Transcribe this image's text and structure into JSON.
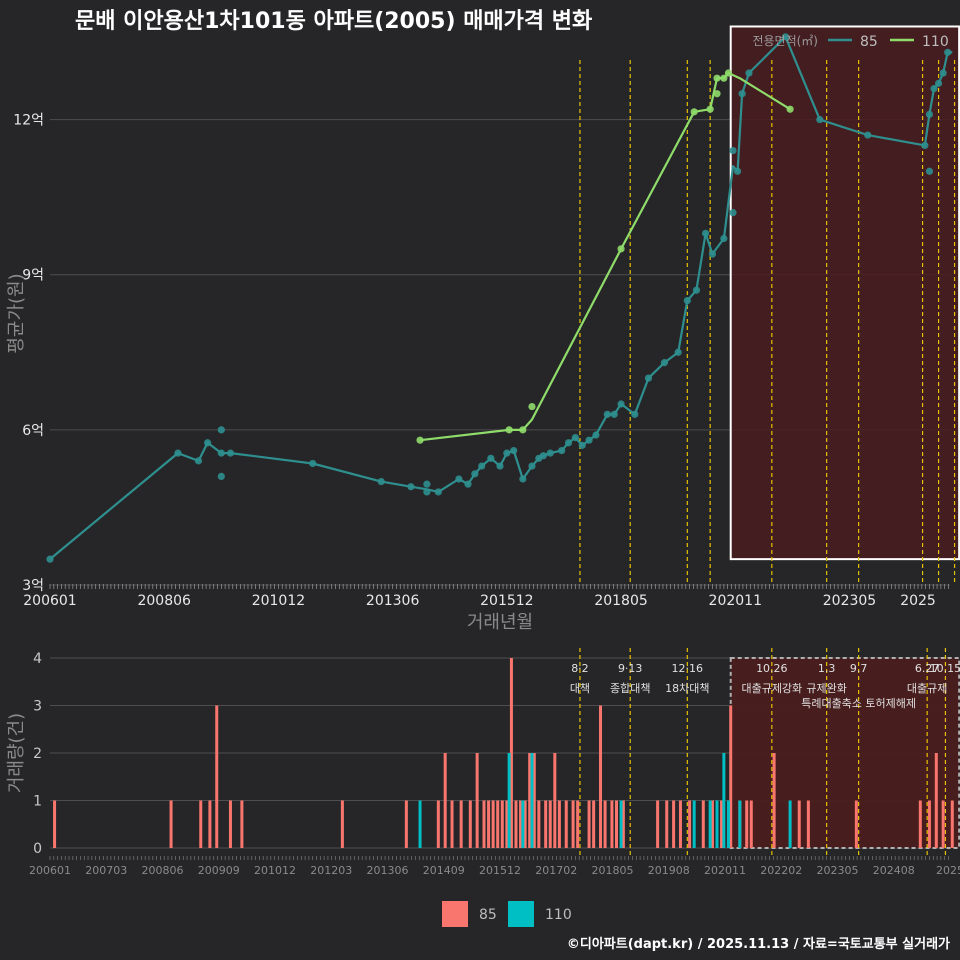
{
  "title": "문배 이안용산1차101동 아파트(2005) 매매가격 변화",
  "caption": "©디아파트(dapt.kr) / 2025.11.13 / 자료=국토교통부 실거래가",
  "colors": {
    "background": "#262628",
    "grid": "#4e4e50",
    "series_85_line": "#2f8f8f",
    "series_110_line": "#8fdc6a",
    "bar_85": "#f8766d",
    "bar_110": "#00bfc4",
    "policy_line": "#e6c200",
    "highlight_fill": "#4a1c1e",
    "highlight_border": "#ffffff"
  },
  "chart_data": [
    {
      "type": "line",
      "title": "문배 이안용산1차101동 아파트(2005) 매매가격 변화",
      "xlabel": "거래년월",
      "ylabel": "평균가(원)",
      "legend_title": "전용면적(㎡)",
      "legend_position": "top-right",
      "xlim": [
        2006.0,
        2025.7
      ],
      "ylim": [
        3,
        13.5
      ],
      "y_ticks": [
        3,
        6,
        9,
        12
      ],
      "y_tick_labels": [
        "3억",
        "6억",
        "9억",
        "12억"
      ],
      "x_ticks": [
        2006.0,
        2008.5,
        2011.0,
        2013.5,
        2016.0,
        2018.5,
        2021.0,
        2023.5,
        2025.0
      ],
      "x_tick_labels": [
        "200601",
        "200806",
        "201012",
        "201306",
        "201512",
        "201805",
        "202011",
        "202305",
        "2025"
      ],
      "policy_dates": [
        2017.6,
        2018.7,
        2019.95,
        2020.45,
        2021.8,
        2023.0,
        2023.7,
        2025.1,
        2025.45,
        2025.8
      ],
      "highlight_range": {
        "x": [
          2020.9,
          2025.9
        ],
        "y": [
          3.5,
          13.8
        ]
      },
      "series": [
        {
          "name": "85",
          "line_x": [
            2006.0,
            2008.8,
            2009.25,
            2009.45,
            2009.75,
            2009.95,
            2011.75,
            2013.25,
            2013.9,
            2014.25,
            2014.5,
            2014.95,
            2015.15,
            2015.3,
            2015.45,
            2015.65,
            2015.85,
            2016.0,
            2016.15,
            2016.35,
            2016.55,
            2016.7,
            2016.8,
            2016.95,
            2017.2,
            2017.35,
            2017.5,
            2017.65,
            2017.8,
            2017.95,
            2018.2,
            2018.35,
            2018.5,
            2018.8,
            2019.1,
            2019.45,
            2019.75,
            2019.95,
            2020.15,
            2020.35,
            2020.5,
            2020.75,
            2020.95,
            2021.05,
            2021.15,
            2021.3,
            2022.1,
            2022.85,
            2023.9,
            2025.15,
            2025.25,
            2025.35,
            2025.45,
            2025.55,
            2025.65,
            2025.75
          ],
          "line_y": [
            3.5,
            5.55,
            5.4,
            5.75,
            5.55,
            5.55,
            5.35,
            5.0,
            4.9,
            4.85,
            4.8,
            5.05,
            4.95,
            5.15,
            5.3,
            5.45,
            5.3,
            5.55,
            5.6,
            5.05,
            5.3,
            5.45,
            5.5,
            5.55,
            5.6,
            5.75,
            5.85,
            5.7,
            5.8,
            5.9,
            6.3,
            6.3,
            6.5,
            6.3,
            7.0,
            7.3,
            7.5,
            8.5,
            8.7,
            9.8,
            9.4,
            9.7,
            11.1,
            11.0,
            12.5,
            12.9,
            13.6,
            12.0,
            11.7,
            11.5,
            12.1,
            12.6,
            12.7,
            12.9,
            13.3,
            13.3
          ],
          "points_x": [
            2006.0,
            2008.8,
            2009.25,
            2009.45,
            2009.75,
            2009.75,
            2009.75,
            2009.95,
            2011.75,
            2013.25,
            2013.9,
            2014.25,
            2014.25,
            2014.5,
            2014.95,
            2015.15,
            2015.3,
            2015.45,
            2015.65,
            2015.85,
            2016.0,
            2016.15,
            2016.35,
            2016.55,
            2016.7,
            2016.8,
            2016.95,
            2017.2,
            2017.35,
            2017.5,
            2017.65,
            2017.8,
            2017.95,
            2018.2,
            2018.35,
            2018.5,
            2018.8,
            2019.1,
            2019.45,
            2019.75,
            2019.95,
            2020.15,
            2020.35,
            2020.5,
            2020.75,
            2020.95,
            2020.95,
            2021.05,
            2021.15,
            2021.3,
            2022.1,
            2022.85,
            2023.9,
            2025.15,
            2025.25,
            2025.25,
            2025.35,
            2025.45,
            2025.55,
            2025.65
          ],
          "points_y": [
            3.5,
            5.55,
            5.4,
            5.75,
            5.55,
            6.0,
            5.1,
            5.55,
            5.35,
            5.0,
            4.9,
            4.95,
            4.8,
            4.8,
            5.05,
            4.95,
            5.15,
            5.3,
            5.45,
            5.3,
            5.55,
            5.6,
            5.05,
            5.3,
            5.45,
            5.5,
            5.55,
            5.6,
            5.75,
            5.85,
            5.7,
            5.8,
            5.9,
            6.3,
            6.3,
            6.5,
            6.3,
            7.0,
            7.3,
            7.5,
            8.5,
            8.7,
            9.8,
            9.4,
            9.7,
            11.4,
            10.2,
            11.0,
            12.5,
            12.9,
            13.6,
            12.0,
            11.7,
            11.5,
            11.0,
            12.1,
            12.6,
            12.7,
            12.9,
            13.3
          ]
        },
        {
          "name": "110",
          "line_x": [
            2014.1,
            2016.05,
            2016.35,
            2016.55,
            2018.5,
            2020.1,
            2020.45,
            2020.6,
            2020.75,
            2020.85,
            2021.1,
            2022.2
          ],
          "line_y": [
            5.8,
            6.0,
            6.0,
            6.2,
            9.5,
            12.15,
            12.2,
            12.8,
            12.8,
            12.9,
            12.8,
            12.2
          ],
          "points_x": [
            2014.1,
            2016.05,
            2016.35,
            2016.55,
            2018.5,
            2020.1,
            2020.45,
            2020.6,
            2020.6,
            2020.75,
            2020.85,
            2022.2
          ],
          "points_y": [
            5.8,
            6.0,
            6.0,
            6.45,
            9.5,
            12.15,
            12.2,
            12.8,
            12.5,
            12.8,
            12.9,
            12.2
          ]
        }
      ]
    },
    {
      "type": "bar",
      "ylabel": "거래량(건)",
      "ylim": [
        0,
        4
      ],
      "y_ticks": [
        0,
        1,
        2,
        3,
        4
      ],
      "y_tick_labels": [
        "0",
        "1",
        "2",
        "3",
        "4"
      ],
      "x_tick_labels": [
        "200601",
        "200703",
        "200806",
        "200909",
        "201012",
        "201203",
        "201306",
        "201409",
        "201512",
        "201702",
        "201805",
        "201908",
        "202011",
        "202202",
        "202305",
        "202408",
        "2025"
      ],
      "highlight_range": {
        "x": [
          2020.9,
          2025.9
        ]
      },
      "policy_labels": [
        {
          "x": 2017.6,
          "date": "8·2",
          "name": "대책"
        },
        {
          "x": 2018.7,
          "date": "9·13",
          "name": "종합대책"
        },
        {
          "x": 2019.95,
          "date": "12·16",
          "name": "18차대책"
        },
        {
          "x": 2021.8,
          "date": "10.26",
          "name": "대출규제강화"
        },
        {
          "x": 2023.0,
          "date": "1.3",
          "name": "규제완화"
        },
        {
          "x": 2023.7,
          "date": "9.7",
          "name": "특례대출축소 토허제해제"
        },
        {
          "x": 2025.2,
          "date": "6.27",
          "name": "대출규제"
        },
        {
          "x": 2025.6,
          "date": "10.15",
          "name": ""
        }
      ],
      "series": [
        {
          "name": "85",
          "x": [
            2006.1,
            2008.65,
            2009.3,
            2009.5,
            2009.65,
            2009.95,
            2010.2,
            2012.4,
            2013.8,
            2014.5,
            2014.65,
            2014.8,
            2015.0,
            2015.2,
            2015.35,
            2015.5,
            2015.6,
            2015.7,
            2015.8,
            2015.9,
            2016.0,
            2016.1,
            2016.2,
            2016.3,
            2016.4,
            2016.5,
            2016.6,
            2016.7,
            2016.85,
            2016.95,
            2017.05,
            2017.15,
            2017.3,
            2017.45,
            2017.55,
            2017.8,
            2017.9,
            2018.05,
            2018.15,
            2018.3,
            2018.4,
            2018.55,
            2019.3,
            2019.5,
            2019.65,
            2019.8,
            2020.0,
            2020.3,
            2020.5,
            2020.7,
            2020.9,
            2021.1,
            2021.25,
            2021.35,
            2021.85,
            2022.4,
            2022.6,
            2023.65,
            2025.05,
            2025.25,
            2025.4,
            2025.55,
            2025.75
          ],
          "values": [
            1,
            1,
            1,
            1,
            3,
            1,
            1,
            1,
            1,
            1,
            2,
            1,
            1,
            1,
            2,
            1,
            1,
            1,
            1,
            1,
            1,
            4,
            1,
            1,
            1,
            2,
            2,
            1,
            1,
            1,
            2,
            1,
            1,
            1,
            1,
            1,
            1,
            3,
            1,
            1,
            1,
            1,
            1,
            1,
            1,
            1,
            1,
            1,
            1,
            1,
            3,
            1,
            1,
            1,
            2,
            1,
            1,
            1,
            1,
            1,
            2,
            1,
            1
          ]
        },
        {
          "name": "110",
          "x": [
            2014.1,
            2016.05,
            2016.35,
            2016.55,
            2018.5,
            2020.1,
            2020.45,
            2020.6,
            2020.75,
            2020.85,
            2021.1,
            2022.2
          ],
          "values": [
            1,
            2,
            1,
            2,
            1,
            1,
            1,
            1,
            2,
            1,
            1,
            1
          ]
        }
      ],
      "legend": [
        "85",
        "110"
      ],
      "legend_position": "bottom"
    }
  ]
}
